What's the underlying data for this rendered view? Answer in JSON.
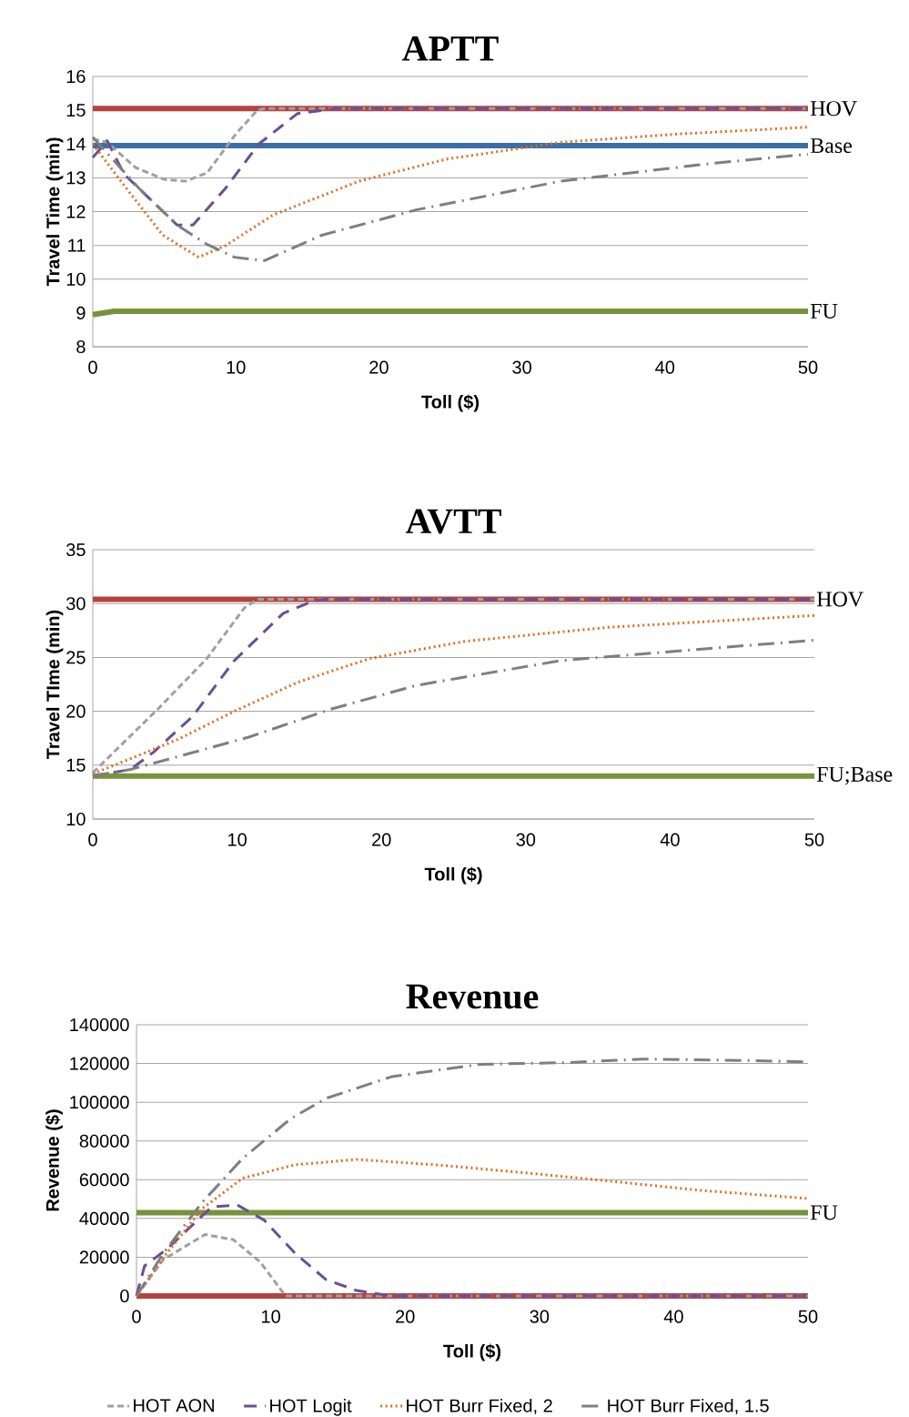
{
  "chart_data": [
    {
      "type": "line",
      "title": "APTT",
      "xlabel": "Toll ($)",
      "ylabel": "Travel Time (min)",
      "xlim": [
        0,
        50
      ],
      "ylim": [
        8,
        16
      ],
      "xticks": [
        0,
        10,
        20,
        30,
        40,
        50
      ],
      "yticks": [
        8,
        9,
        10,
        11,
        12,
        13,
        14,
        15,
        16
      ],
      "grid": "y",
      "legend": false,
      "series": [
        {
          "name": "HOV",
          "color": "#b5433f",
          "line_style": "solid",
          "x": [
            0,
            50
          ],
          "values": [
            15.05,
            15.05
          ]
        },
        {
          "name": "Base",
          "color": "#3a6ea8",
          "line_style": "solid",
          "x": [
            0,
            50
          ],
          "values": [
            13.95,
            13.95
          ]
        },
        {
          "name": "FU",
          "color": "#77933c",
          "line_style": "solid",
          "x": [
            0,
            1.5,
            50
          ],
          "values": [
            8.95,
            9.05,
            9.05
          ]
        },
        {
          "color": "#a0a0a0",
          "line_style": "dashed",
          "x": [
            0,
            1,
            3,
            5,
            6.5,
            8,
            10,
            11.5,
            12,
            50
          ],
          "values": [
            14.15,
            14.05,
            13.3,
            12.95,
            12.9,
            13.15,
            14.3,
            15.0,
            15.05,
            15.05
          ]
        },
        {
          "color": "#6a4f96",
          "line_style": "long dashed",
          "x": [
            0,
            1,
            2.2,
            5.9,
            7,
            9.3,
            11.6,
            14.3,
            17,
            50
          ],
          "values": [
            13.6,
            14.1,
            13.1,
            11.6,
            11.6,
            12.7,
            14.0,
            14.9,
            15.05,
            15.05
          ]
        },
        {
          "color": "#e46c1e",
          "line_style": "dotted",
          "x": [
            0,
            2.6,
            4.9,
            7.4,
            9.3,
            12.6,
            18.6,
            24.7,
            32.7,
            41.1,
            50
          ],
          "values": [
            14.0,
            12.55,
            11.3,
            10.65,
            11.0,
            11.9,
            12.9,
            13.55,
            14.05,
            14.3,
            14.5
          ]
        },
        {
          "color": "#7f7f7f",
          "line_style": "dashdot",
          "x": [
            0,
            3.2,
            5.9,
            7.9,
            9.9,
            12,
            16,
            22.6,
            32.7,
            42.7,
            50
          ],
          "values": [
            14.2,
            12.7,
            11.6,
            11.05,
            10.65,
            10.55,
            11.3,
            12.05,
            12.9,
            13.4,
            13.7
          ]
        }
      ]
    },
    {
      "type": "line",
      "title": "AVTT",
      "xlabel": "Toll ($)",
      "ylabel": "Travel TIme (min)",
      "xlim": [
        0,
        50
      ],
      "ylim": [
        10,
        35
      ],
      "xticks": [
        0,
        10,
        20,
        30,
        40,
        50
      ],
      "yticks": [
        10,
        15,
        20,
        25,
        30,
        35
      ],
      "grid": "y",
      "legend": false,
      "series": [
        {
          "name": "HOV",
          "color": "#b5433f",
          "line_style": "solid",
          "x": [
            0,
            50
          ],
          "values": [
            30.4,
            30.4
          ]
        },
        {
          "name": "FU;Base",
          "color": "#77933c",
          "line_style": "solid",
          "x": [
            0,
            50
          ],
          "values": [
            14.0,
            14.0
          ]
        },
        {
          "color": "#a0a0a0",
          "line_style": "dashed",
          "x": [
            0,
            4.5,
            7.9,
            10.5,
            11.4,
            50
          ],
          "values": [
            14.3,
            20.2,
            24.9,
            29.6,
            30.4,
            30.4
          ]
        },
        {
          "color": "#6a4f96",
          "line_style": "long dashed",
          "x": [
            0,
            2.6,
            4.2,
            6.9,
            9.8,
            13.2,
            15.2,
            16,
            50
          ],
          "values": [
            14.0,
            14.6,
            16.2,
            19.5,
            24.7,
            29.1,
            30.2,
            30.4,
            30.4
          ]
        },
        {
          "color": "#e46c1e",
          "line_style": "dotted",
          "x": [
            0,
            2.6,
            5.9,
            9.8,
            14.2,
            19.2,
            25.8,
            35.7,
            50
          ],
          "values": [
            14.2,
            15.6,
            17.4,
            20.0,
            22.7,
            24.9,
            26.5,
            27.8,
            28.9
          ]
        },
        {
          "color": "#7f7f7f",
          "line_style": "dashdot",
          "x": [
            0,
            2.6,
            5.9,
            10.8,
            16.5,
            22.4,
            32.4,
            42.4,
            50
          ],
          "values": [
            14.0,
            14.6,
            15.8,
            17.6,
            20.2,
            22.4,
            24.7,
            25.8,
            26.6
          ]
        }
      ]
    },
    {
      "type": "line",
      "title": "Revenue",
      "xlabel": "Toll ($)",
      "ylabel": "Revenue ($)",
      "xlim": [
        0,
        50
      ],
      "ylim": [
        0,
        140000
      ],
      "xticks": [
        0,
        10,
        20,
        30,
        40,
        50
      ],
      "yticks": [
        0,
        20000,
        40000,
        60000,
        80000,
        100000,
        120000,
        140000
      ],
      "grid": "y",
      "legend": "bottom",
      "series": [
        {
          "color": "#b5433f",
          "line_style": "solid",
          "x": [
            0,
            50
          ],
          "values": [
            0,
            0
          ]
        },
        {
          "name": "FU",
          "color": "#77933c",
          "line_style": "solid",
          "x": [
            0,
            50
          ],
          "values": [
            43000,
            43000
          ]
        },
        {
          "name": "HOT AON",
          "color": "#a0a0a0",
          "line_style": "dashed",
          "x": [
            0,
            2.0,
            5.1,
            7.2,
            9.2,
            11.1,
            50
          ],
          "values": [
            0,
            18800,
            31700,
            29100,
            17600,
            0,
            0
          ]
        },
        {
          "name": "HOT Logit",
          "color": "#6a4f96",
          "line_style": "long dashed",
          "x": [
            0,
            0.6,
            2.3,
            5.6,
            7.5,
            9.5,
            11.8,
            14.1,
            16.4,
            19,
            50
          ],
          "values": [
            0,
            15500,
            24400,
            46000,
            47000,
            39200,
            22100,
            8500,
            2800,
            0,
            0
          ]
        },
        {
          "name": "HOT Burr Fixed, 2",
          "color": "#e46c1e",
          "line_style": "dotted",
          "x": [
            0,
            2.0,
            4.9,
            7.9,
            11.8,
            16.4,
            22.3,
            28.9,
            35.4,
            42,
            50
          ],
          "values": [
            0,
            19700,
            45100,
            60800,
            67700,
            70500,
            67700,
            63600,
            59200,
            54500,
            50300
          ]
        },
        {
          "name": "HOT Burr Fixed, 1.5",
          "color": "#7f7f7f",
          "line_style": "dashdot",
          "x": [
            0,
            2.0,
            4.9,
            7.9,
            11.5,
            14.1,
            19,
            25.6,
            32.2,
            37.7,
            45.3,
            50
          ],
          "values": [
            0,
            22100,
            48400,
            71000,
            91600,
            102000,
            113200,
            119600,
            120500,
            122300,
            121600,
            120800
          ]
        }
      ]
    }
  ]
}
